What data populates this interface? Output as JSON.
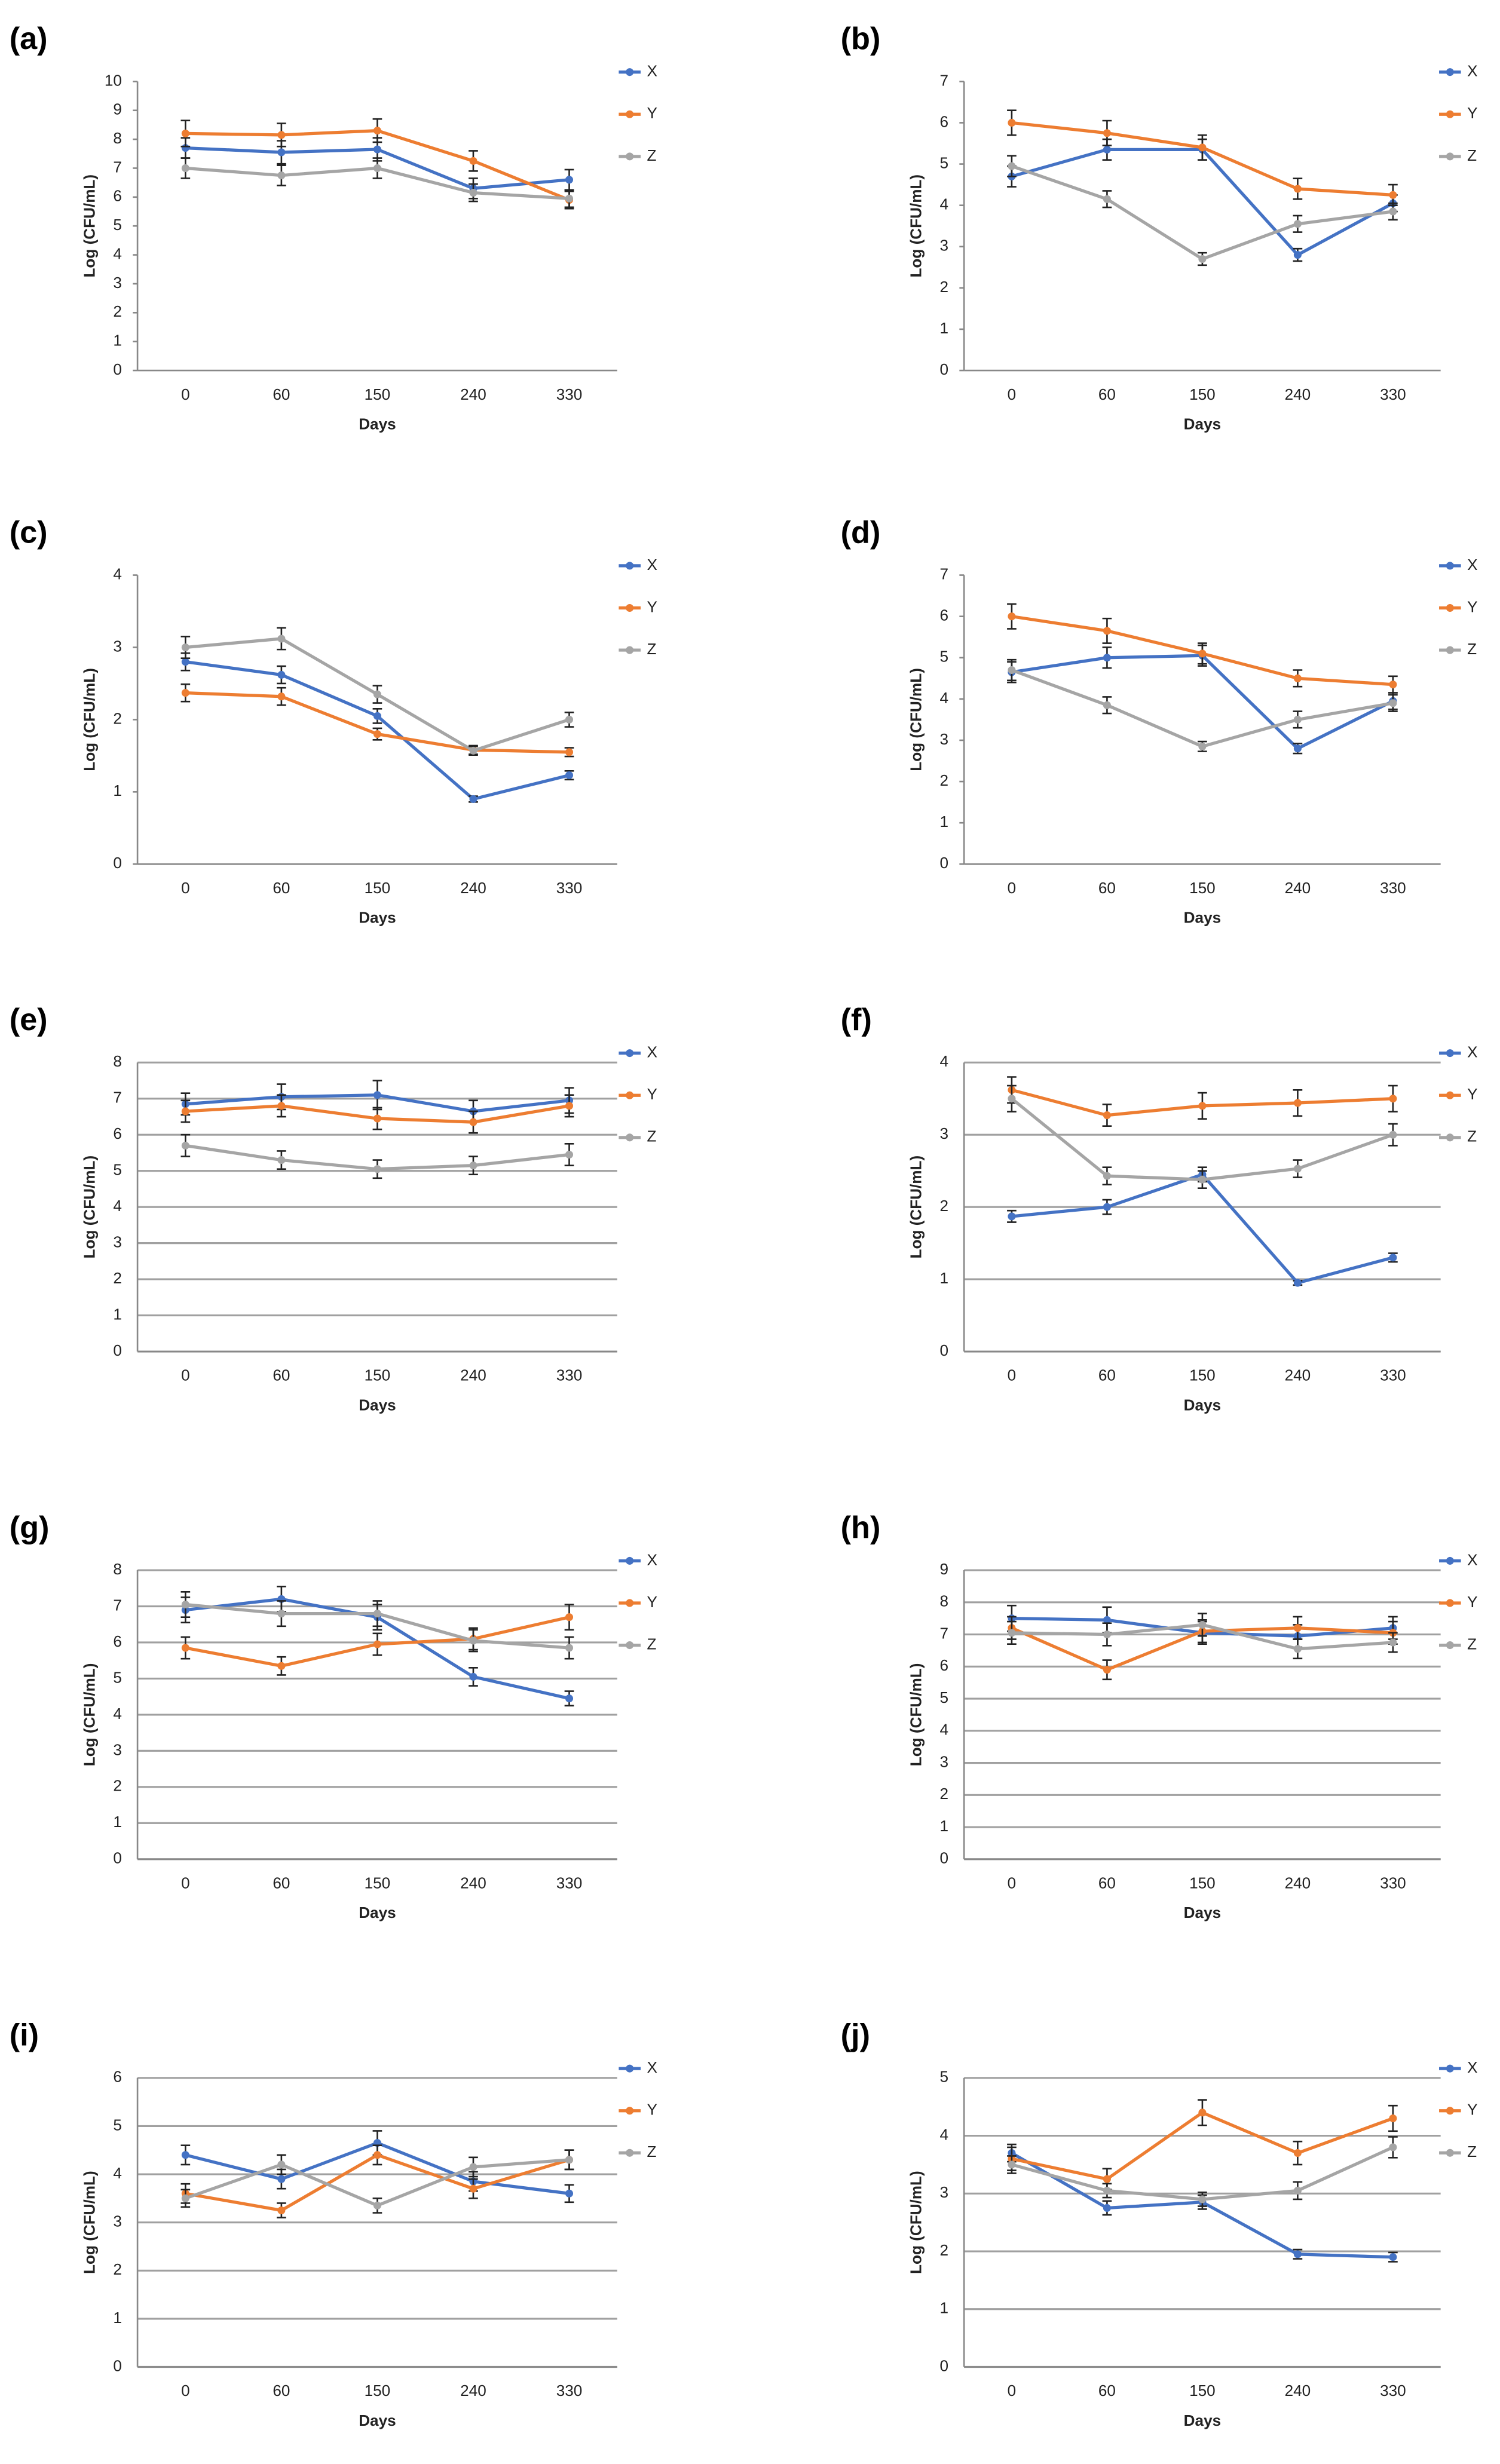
{
  "chart_data": [
    {
      "type": "line",
      "label": "(a)",
      "x_label": "Days",
      "y_label": "Log (CFU/mL)",
      "categories": [
        "0",
        "60",
        "150",
        "240",
        "330"
      ],
      "ylim": [
        0,
        10
      ],
      "yticks": [
        0,
        1,
        2,
        3,
        4,
        5,
        6,
        7,
        8,
        9,
        10
      ],
      "grid": false,
      "series": [
        {
          "name": "X",
          "color": "#4472c4",
          "values": [
            7.7,
            7.55,
            7.65,
            6.3,
            6.6
          ],
          "errors": [
            0.35,
            0.4,
            0.4,
            0.35,
            0.35
          ]
        },
        {
          "name": "Y",
          "color": "#ed7d31",
          "values": [
            8.2,
            8.15,
            8.3,
            7.25,
            5.9
          ],
          "errors": [
            0.45,
            0.4,
            0.4,
            0.35,
            0.3
          ]
        },
        {
          "name": "Z",
          "color": "#a5a5a5",
          "values": [
            7.0,
            6.75,
            7.0,
            6.15,
            5.95
          ],
          "errors": [
            0.35,
            0.35,
            0.35,
            0.3,
            0.3
          ]
        }
      ]
    },
    {
      "type": "line",
      "label": "(b)",
      "x_label": "Days",
      "y_label": "Log (CFU/mL)",
      "categories": [
        "0",
        "60",
        "150",
        "240",
        "330"
      ],
      "ylim": [
        0,
        7
      ],
      "yticks": [
        0,
        1,
        2,
        3,
        4,
        5,
        6,
        7
      ],
      "grid": false,
      "series": [
        {
          "name": "X",
          "color": "#4472c4",
          "values": [
            4.7,
            5.35,
            5.35,
            2.8,
            4.05
          ],
          "errors": [
            0.25,
            0.25,
            0.25,
            0.15,
            0.2
          ]
        },
        {
          "name": "Y",
          "color": "#ed7d31",
          "values": [
            6.0,
            5.75,
            5.4,
            4.4,
            4.25
          ],
          "errors": [
            0.3,
            0.3,
            0.3,
            0.25,
            0.25
          ]
        },
        {
          "name": "Z",
          "color": "#a5a5a5",
          "values": [
            4.95,
            4.15,
            2.7,
            3.55,
            3.85
          ],
          "errors": [
            0.25,
            0.2,
            0.15,
            0.2,
            0.2
          ]
        }
      ]
    },
    {
      "type": "line",
      "label": "(c)",
      "x_label": "Days",
      "y_label": "Log (CFU/mL)",
      "categories": [
        "0",
        "60",
        "150",
        "240",
        "330"
      ],
      "ylim": [
        0,
        4
      ],
      "yticks": [
        0,
        1,
        2,
        3,
        4
      ],
      "grid": false,
      "series": [
        {
          "name": "X",
          "color": "#4472c4",
          "values": [
            2.8,
            2.62,
            2.05,
            0.9,
            1.23
          ],
          "errors": [
            0.12,
            0.12,
            0.1,
            0.04,
            0.06
          ]
        },
        {
          "name": "Y",
          "color": "#ed7d31",
          "values": [
            2.37,
            2.32,
            1.8,
            1.58,
            1.55
          ],
          "errors": [
            0.12,
            0.12,
            0.08,
            0.06,
            0.06
          ]
        },
        {
          "name": "Z",
          "color": "#a5a5a5",
          "values": [
            3.0,
            3.12,
            2.35,
            1.57,
            2.0
          ],
          "errors": [
            0.15,
            0.15,
            0.12,
            0.06,
            0.1
          ]
        }
      ]
    },
    {
      "type": "line",
      "label": "(d)",
      "x_label": "Days",
      "y_label": "Log (CFU/mL)",
      "categories": [
        "0",
        "60",
        "150",
        "240",
        "330"
      ],
      "ylim": [
        0,
        7
      ],
      "yticks": [
        0,
        1,
        2,
        3,
        4,
        5,
        6,
        7
      ],
      "grid": false,
      "series": [
        {
          "name": "X",
          "color": "#4472c4",
          "values": [
            4.65,
            5.0,
            5.05,
            2.8,
            3.95
          ],
          "errors": [
            0.25,
            0.25,
            0.25,
            0.12,
            0.2
          ]
        },
        {
          "name": "Y",
          "color": "#ed7d31",
          "values": [
            6.0,
            5.65,
            5.1,
            4.5,
            4.35
          ],
          "errors": [
            0.3,
            0.3,
            0.25,
            0.2,
            0.2
          ]
        },
        {
          "name": "Z",
          "color": "#a5a5a5",
          "values": [
            4.7,
            3.85,
            2.85,
            3.5,
            3.9
          ],
          "errors": [
            0.25,
            0.2,
            0.12,
            0.2,
            0.2
          ]
        }
      ]
    },
    {
      "type": "line",
      "label": "(e)",
      "x_label": "Days",
      "y_label": "Log (CFU/mL)",
      "categories": [
        "0",
        "60",
        "150",
        "240",
        "330"
      ],
      "ylim": [
        0,
        8
      ],
      "yticks": [
        0,
        1,
        2,
        3,
        4,
        5,
        6,
        7,
        8
      ],
      "grid": true,
      "series": [
        {
          "name": "X",
          "color": "#4472c4",
          "values": [
            6.85,
            7.05,
            7.1,
            6.65,
            6.95
          ],
          "errors": [
            0.3,
            0.35,
            0.4,
            0.3,
            0.35
          ]
        },
        {
          "name": "Y",
          "color": "#ed7d31",
          "values": [
            6.65,
            6.8,
            6.45,
            6.35,
            6.8
          ],
          "errors": [
            0.3,
            0.3,
            0.3,
            0.3,
            0.3
          ]
        },
        {
          "name": "Z",
          "color": "#a5a5a5",
          "values": [
            5.7,
            5.3,
            5.05,
            5.15,
            5.45
          ],
          "errors": [
            0.3,
            0.25,
            0.25,
            0.25,
            0.3
          ]
        }
      ]
    },
    {
      "type": "line",
      "label": "(f)",
      "x_label": "Days",
      "y_label": "Log (CFU/mL)",
      "categories": [
        "0",
        "60",
        "150",
        "240",
        "330"
      ],
      "ylim": [
        0,
        4
      ],
      "yticks": [
        0,
        1,
        2,
        3,
        4
      ],
      "grid": true,
      "series": [
        {
          "name": "X",
          "color": "#4472c4",
          "values": [
            1.87,
            2.0,
            2.45,
            0.95,
            1.3
          ],
          "errors": [
            0.08,
            0.1,
            0.1,
            0.03,
            0.06
          ]
        },
        {
          "name": "Y",
          "color": "#ed7d31",
          "values": [
            3.62,
            3.27,
            3.4,
            3.44,
            3.5
          ],
          "errors": [
            0.18,
            0.15,
            0.18,
            0.18,
            0.18
          ]
        },
        {
          "name": "Z",
          "color": "#a5a5a5",
          "values": [
            3.5,
            2.43,
            2.38,
            2.53,
            3.0
          ],
          "errors": [
            0.18,
            0.12,
            0.12,
            0.12,
            0.15
          ]
        }
      ]
    },
    {
      "type": "line",
      "label": "(g)",
      "x_label": "Days",
      "y_label": "Log (CFU/mL)",
      "categories": [
        "0",
        "60",
        "150",
        "240",
        "330"
      ],
      "ylim": [
        0,
        8
      ],
      "yticks": [
        0,
        1,
        2,
        3,
        4,
        5,
        6,
        7,
        8
      ],
      "grid": true,
      "series": [
        {
          "name": "X",
          "color": "#4472c4",
          "values": [
            6.9,
            7.2,
            6.7,
            5.05,
            4.45
          ],
          "errors": [
            0.35,
            0.35,
            0.35,
            0.25,
            0.2
          ]
        },
        {
          "name": "Y",
          "color": "#ed7d31",
          "values": [
            5.85,
            5.35,
            5.95,
            6.1,
            6.7
          ],
          "errors": [
            0.3,
            0.25,
            0.3,
            0.3,
            0.35
          ]
        },
        {
          "name": "Z",
          "color": "#a5a5a5",
          "values": [
            7.05,
            6.8,
            6.8,
            6.05,
            5.85
          ],
          "errors": [
            0.35,
            0.35,
            0.35,
            0.3,
            0.3
          ]
        }
      ]
    },
    {
      "type": "line",
      "label": "(h)",
      "x_label": "Days",
      "y_label": "Log (CFU/mL)",
      "categories": [
        "0",
        "60",
        "150",
        "240",
        "330"
      ],
      "ylim": [
        0,
        9
      ],
      "yticks": [
        0,
        1,
        2,
        3,
        4,
        5,
        6,
        7,
        8,
        9
      ],
      "grid": true,
      "series": [
        {
          "name": "X",
          "color": "#4472c4",
          "values": [
            7.5,
            7.45,
            7.05,
            6.95,
            7.2
          ],
          "errors": [
            0.4,
            0.4,
            0.35,
            0.35,
            0.35
          ]
        },
        {
          "name": "Y",
          "color": "#ed7d31",
          "values": [
            7.2,
            5.9,
            7.1,
            7.2,
            7.05
          ],
          "errors": [
            0.35,
            0.3,
            0.35,
            0.35,
            0.35
          ]
        },
        {
          "name": "Z",
          "color": "#a5a5a5",
          "values": [
            7.05,
            7.0,
            7.3,
            6.55,
            6.75
          ],
          "errors": [
            0.35,
            0.35,
            0.35,
            0.3,
            0.3
          ]
        }
      ]
    },
    {
      "type": "line",
      "label": "(i)",
      "x_label": "Days",
      "y_label": "Log (CFU/mL)",
      "categories": [
        "0",
        "60",
        "150",
        "240",
        "330"
      ],
      "ylim": [
        0,
        6
      ],
      "yticks": [
        0,
        1,
        2,
        3,
        4,
        5,
        6
      ],
      "grid": true,
      "series": [
        {
          "name": "X",
          "color": "#4472c4",
          "values": [
            4.4,
            3.9,
            4.65,
            3.85,
            3.6
          ],
          "errors": [
            0.2,
            0.2,
            0.25,
            0.2,
            0.18
          ]
        },
        {
          "name": "Y",
          "color": "#ed7d31",
          "values": [
            3.6,
            3.25,
            4.4,
            3.7,
            4.3
          ],
          "errors": [
            0.2,
            0.15,
            0.2,
            0.2,
            0.2
          ]
        },
        {
          "name": "Z",
          "color": "#a5a5a5",
          "values": [
            3.5,
            4.2,
            3.35,
            4.15,
            4.3
          ],
          "errors": [
            0.18,
            0.2,
            0.15,
            0.2,
            0.2
          ]
        }
      ]
    },
    {
      "type": "line",
      "label": "(j)",
      "x_label": "Days",
      "y_label": "Log (CFU/mL)",
      "categories": [
        "0",
        "60",
        "150",
        "240",
        "330"
      ],
      "ylim": [
        0,
        5
      ],
      "yticks": [
        0,
        1,
        2,
        3,
        4,
        5
      ],
      "grid": true,
      "series": [
        {
          "name": "X",
          "color": "#4472c4",
          "values": [
            3.7,
            2.75,
            2.85,
            1.95,
            1.9
          ],
          "errors": [
            0.15,
            0.12,
            0.12,
            0.08,
            0.08
          ]
        },
        {
          "name": "Y",
          "color": "#ed7d31",
          "values": [
            3.6,
            3.25,
            4.4,
            3.7,
            4.3
          ],
          "errors": [
            0.2,
            0.18,
            0.22,
            0.2,
            0.22
          ]
        },
        {
          "name": "Z",
          "color": "#a5a5a5",
          "values": [
            3.5,
            3.05,
            2.9,
            3.05,
            3.8
          ],
          "errors": [
            0.15,
            0.12,
            0.12,
            0.15,
            0.18
          ]
        }
      ]
    }
  ]
}
